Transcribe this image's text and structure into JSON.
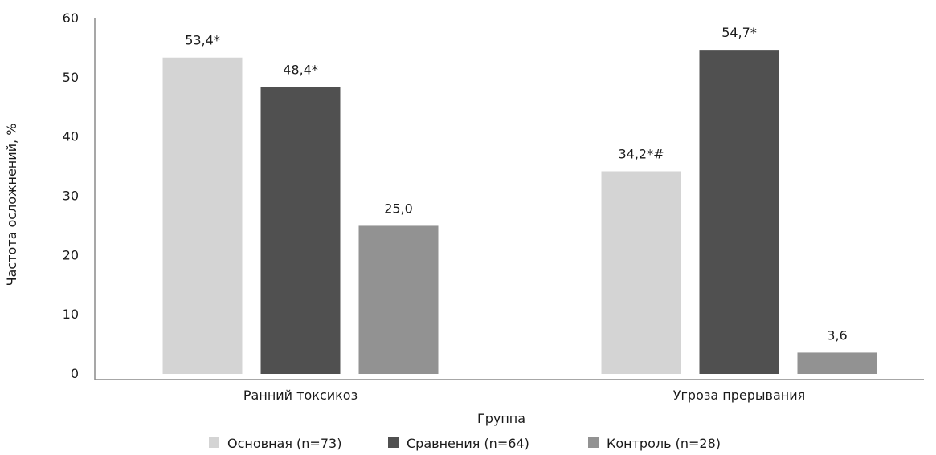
{
  "chart_data": {
    "type": "bar",
    "title": "",
    "xlabel": "Группа",
    "ylabel": "Частота осложнений, %",
    "ylim": [
      0,
      60
    ],
    "yticks": [
      0,
      10,
      20,
      30,
      40,
      50,
      60
    ],
    "grid": false,
    "legend_position": "bottom",
    "categories": [
      "Ранний токсикоз",
      "Угроза прерывания"
    ],
    "series": [
      {
        "name": "Основная (n=73)",
        "color": "#d4d4d4",
        "values": [
          53.4,
          34.2
        ],
        "labels": [
          "53,4*",
          "34,2*#"
        ]
      },
      {
        "name": "Сравнения (n=64)",
        "color": "#505050",
        "values": [
          48.4,
          54.7
        ],
        "labels": [
          "48,4*",
          "54,7*"
        ]
      },
      {
        "name": "Контроль (n=28)",
        "color": "#929292",
        "values": [
          25.0,
          3.6
        ],
        "labels": [
          "25,0",
          "3,6"
        ]
      }
    ]
  }
}
